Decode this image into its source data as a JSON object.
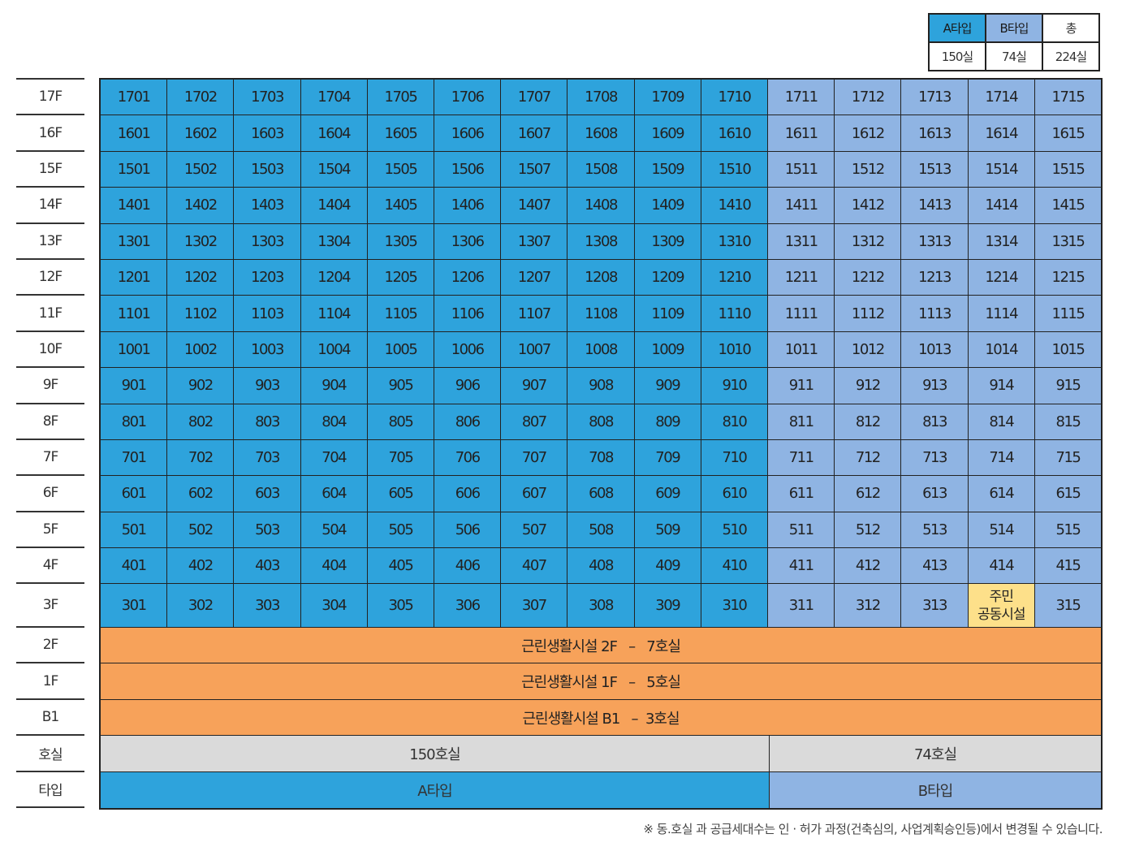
{
  "legend": {
    "headers": [
      "A타입",
      "B타입",
      "총"
    ],
    "values": [
      "150실",
      "74실",
      "224실"
    ]
  },
  "floors_top": [
    "17F",
    "16F",
    "15F",
    "14F",
    "13F",
    "12F",
    "11F",
    "10F",
    "9F",
    "8F",
    "7F",
    "6F",
    "5F",
    "4F",
    "3F"
  ],
  "floors_bottom": [
    "2F",
    "1F",
    "B1",
    "호실",
    "타입"
  ],
  "units": [
    [
      "1701",
      "1702",
      "1703",
      "1704",
      "1705",
      "1706",
      "1707",
      "1708",
      "1709",
      "1710",
      "1711",
      "1712",
      "1713",
      "1714",
      "1715"
    ],
    [
      "1601",
      "1602",
      "1603",
      "1604",
      "1605",
      "1606",
      "1607",
      "1608",
      "1609",
      "1610",
      "1611",
      "1612",
      "1613",
      "1614",
      "1615"
    ],
    [
      "1501",
      "1502",
      "1503",
      "1504",
      "1505",
      "1506",
      "1507",
      "1508",
      "1509",
      "1510",
      "1511",
      "1512",
      "1513",
      "1514",
      "1515"
    ],
    [
      "1401",
      "1402",
      "1403",
      "1404",
      "1405",
      "1406",
      "1407",
      "1408",
      "1409",
      "1410",
      "1411",
      "1412",
      "1413",
      "1414",
      "1415"
    ],
    [
      "1301",
      "1302",
      "1303",
      "1304",
      "1305",
      "1306",
      "1307",
      "1308",
      "1309",
      "1310",
      "1311",
      "1312",
      "1313",
      "1314",
      "1315"
    ],
    [
      "1201",
      "1202",
      "1203",
      "1204",
      "1205",
      "1206",
      "1207",
      "1208",
      "1209",
      "1210",
      "1211",
      "1212",
      "1213",
      "1214",
      "1215"
    ],
    [
      "1101",
      "1102",
      "1103",
      "1104",
      "1105",
      "1106",
      "1107",
      "1108",
      "1109",
      "1110",
      "1111",
      "1112",
      "1113",
      "1114",
      "1115"
    ],
    [
      "1001",
      "1002",
      "1003",
      "1004",
      "1005",
      "1006",
      "1007",
      "1008",
      "1009",
      "1010",
      "1011",
      "1012",
      "1013",
      "1014",
      "1015"
    ],
    [
      "901",
      "902",
      "903",
      "904",
      "905",
      "906",
      "907",
      "908",
      "909",
      "910",
      "911",
      "912",
      "913",
      "914",
      "915"
    ],
    [
      "801",
      "802",
      "803",
      "804",
      "805",
      "806",
      "807",
      "808",
      "809",
      "810",
      "811",
      "812",
      "813",
      "814",
      "815"
    ],
    [
      "701",
      "702",
      "703",
      "704",
      "705",
      "706",
      "707",
      "708",
      "709",
      "710",
      "711",
      "712",
      "713",
      "714",
      "715"
    ],
    [
      "601",
      "602",
      "603",
      "604",
      "605",
      "606",
      "607",
      "608",
      "609",
      "610",
      "611",
      "612",
      "613",
      "614",
      "615"
    ],
    [
      "501",
      "502",
      "503",
      "504",
      "505",
      "506",
      "507",
      "508",
      "509",
      "510",
      "511",
      "512",
      "513",
      "514",
      "515"
    ],
    [
      "401",
      "402",
      "403",
      "404",
      "405",
      "406",
      "407",
      "408",
      "409",
      "410",
      "411",
      "412",
      "413",
      "414",
      "415"
    ],
    [
      "301",
      "302",
      "303",
      "304",
      "305",
      "306",
      "307",
      "308",
      "309",
      "310",
      "311",
      "312",
      "313",
      "주민\n공동시설",
      "315"
    ]
  ],
  "commercial": [
    "근린생활시설 2F   –   7호실",
    "근린생활시설 1F   –   5호실",
    "근린생활시설 B1   –  3호실"
  ],
  "counts": {
    "a": "150호실",
    "b": "74호실"
  },
  "types": {
    "a": "A타입",
    "b": "B타입"
  },
  "note": "※ 동.호실 과 공급세대수는 인 · 허가 과정(건축심의, 사업계획승인등)에서 변경될 수 있습니다.",
  "colors": {
    "type_a": "#2ea3dc",
    "type_b": "#8fb4e3",
    "commercial": "#f7a25a",
    "facility": "#fde08a",
    "count_row": "#dadada"
  }
}
